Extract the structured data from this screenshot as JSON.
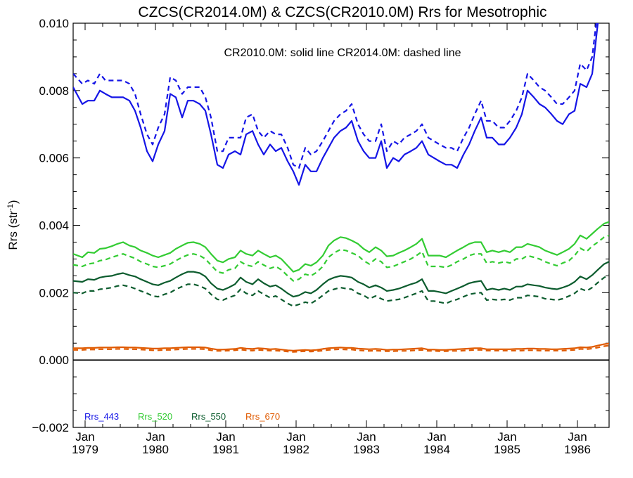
{
  "chart_data": {
    "type": "line",
    "title": "CZCS(CR2014.0M) & CZCS(CR2010.0M)  Rrs for Mesotrophic",
    "annotation": "CR2010.0M: solid line   CR2014.0M: dashed line",
    "ylabel": "Rrs (str",
    "ylabel_sup": "-1",
    "ylabel_close": ")",
    "xlim": [
      1978.83,
      1986.45
    ],
    "ylim": [
      -0.002,
      0.01
    ],
    "grid": false,
    "yticks": [
      {
        "v": -0.002,
        "label": "−0.002"
      },
      {
        "v": 0.0,
        "label": "0.000"
      },
      {
        "v": 0.002,
        "label": "0.002"
      },
      {
        "v": 0.004,
        "label": "0.004"
      },
      {
        "v": 0.006,
        "label": "0.006"
      },
      {
        "v": 0.008,
        "label": "0.008"
      },
      {
        "v": 0.01,
        "label": "0.010"
      }
    ],
    "xticks": [
      {
        "v": 1979.0,
        "month": "Jan",
        "year": "1979"
      },
      {
        "v": 1980.0,
        "month": "Jan",
        "year": "1980"
      },
      {
        "v": 1981.0,
        "month": "Jan",
        "year": "1981"
      },
      {
        "v": 1982.0,
        "month": "Jan",
        "year": "1982"
      },
      {
        "v": 1983.0,
        "month": "Jan",
        "year": "1983"
      },
      {
        "v": 1984.0,
        "month": "Jan",
        "year": "1984"
      },
      {
        "v": 1985.0,
        "month": "Jan",
        "year": "1985"
      },
      {
        "v": 1986.0,
        "month": "Jan",
        "year": "1986"
      }
    ],
    "legend_placement": "bottom-left",
    "x": [
      1978.83,
      1978.96,
      1979.04,
      1979.13,
      1979.21,
      1979.29,
      1979.38,
      1979.46,
      1979.54,
      1979.63,
      1979.71,
      1979.79,
      1979.88,
      1979.96,
      1980.04,
      1980.13,
      1980.21,
      1980.29,
      1980.38,
      1980.46,
      1980.54,
      1980.63,
      1980.71,
      1980.79,
      1980.88,
      1980.96,
      1981.04,
      1981.13,
      1981.21,
      1981.29,
      1981.38,
      1981.46,
      1981.54,
      1981.63,
      1981.71,
      1981.79,
      1981.88,
      1981.96,
      1982.04,
      1982.13,
      1982.21,
      1982.29,
      1982.38,
      1982.46,
      1982.54,
      1982.63,
      1982.71,
      1982.79,
      1982.88,
      1982.96,
      1983.04,
      1983.13,
      1983.21,
      1983.29,
      1983.38,
      1983.46,
      1983.54,
      1983.63,
      1983.71,
      1983.79,
      1983.88,
      1983.96,
      1984.04,
      1984.13,
      1984.21,
      1984.29,
      1984.38,
      1984.46,
      1984.54,
      1984.63,
      1984.71,
      1984.79,
      1984.88,
      1984.96,
      1985.04,
      1985.13,
      1985.21,
      1985.29,
      1985.38,
      1985.46,
      1985.54,
      1985.63,
      1985.71,
      1985.79,
      1985.88,
      1985.96,
      1986.04,
      1986.13,
      1986.21,
      1986.29,
      1986.38,
      1986.45
    ],
    "series": [
      {
        "name": "Rrs_443",
        "color": "#1515e6",
        "style": "solid",
        "values": [
          0.0081,
          0.0076,
          0.0077,
          0.0077,
          0.008,
          0.0079,
          0.0078,
          0.0078,
          0.0078,
          0.0077,
          0.0074,
          0.0069,
          0.0062,
          0.0059,
          0.0064,
          0.0068,
          0.0079,
          0.0078,
          0.0072,
          0.0077,
          0.0077,
          0.0076,
          0.0074,
          0.0067,
          0.0058,
          0.0057,
          0.0061,
          0.0062,
          0.0061,
          0.0067,
          0.0068,
          0.0064,
          0.0061,
          0.0064,
          0.0062,
          0.0063,
          0.0059,
          0.0056,
          0.0052,
          0.0058,
          0.0056,
          0.0056,
          0.006,
          0.0063,
          0.0066,
          0.0068,
          0.0069,
          0.0071,
          0.0065,
          0.0062,
          0.006,
          0.006,
          0.0065,
          0.0057,
          0.006,
          0.0059,
          0.0061,
          0.0062,
          0.0063,
          0.0065,
          0.0061,
          0.006,
          0.0059,
          0.0058,
          0.0058,
          0.0057,
          0.0061,
          0.0064,
          0.0068,
          0.0072,
          0.0066,
          0.0066,
          0.0064,
          0.0064,
          0.0066,
          0.0069,
          0.0073,
          0.008,
          0.0078,
          0.0076,
          0.0075,
          0.0073,
          0.0071,
          0.007,
          0.0073,
          0.0074,
          0.0082,
          0.0081,
          0.0085,
          0.01,
          0.0108,
          0.0112
        ]
      },
      {
        "name": "Rrs_443",
        "color": "#1515e6",
        "style": "dashed",
        "values": [
          0.0085,
          0.0082,
          0.0083,
          0.0082,
          0.0085,
          0.0083,
          0.0083,
          0.0083,
          0.0083,
          0.0082,
          0.0079,
          0.0073,
          0.0067,
          0.0064,
          0.0069,
          0.0073,
          0.0084,
          0.0083,
          0.0079,
          0.0081,
          0.0081,
          0.0081,
          0.0078,
          0.0072,
          0.0062,
          0.0062,
          0.0066,
          0.0066,
          0.0066,
          0.0072,
          0.0073,
          0.0068,
          0.0066,
          0.0068,
          0.0067,
          0.0067,
          0.0063,
          0.0058,
          0.0057,
          0.0063,
          0.0061,
          0.0062,
          0.0065,
          0.0068,
          0.0071,
          0.0073,
          0.0074,
          0.0076,
          0.007,
          0.0067,
          0.0065,
          0.0065,
          0.007,
          0.0062,
          0.0065,
          0.0064,
          0.0066,
          0.0067,
          0.0068,
          0.007,
          0.0066,
          0.0065,
          0.0064,
          0.0063,
          0.0063,
          0.0062,
          0.0066,
          0.0069,
          0.0073,
          0.0077,
          0.0071,
          0.0071,
          0.0069,
          0.0069,
          0.0071,
          0.0074,
          0.0078,
          0.0085,
          0.0083,
          0.0081,
          0.008,
          0.0078,
          0.0076,
          0.0076,
          0.0078,
          0.008,
          0.0088,
          0.0086,
          0.009,
          0.0104,
          0.011,
          0.0112
        ]
      },
      {
        "name": "Rrs_520",
        "color": "#33cc33",
        "style": "solid",
        "values": [
          0.00315,
          0.00305,
          0.0032,
          0.00318,
          0.0033,
          0.00332,
          0.00338,
          0.00345,
          0.0035,
          0.0034,
          0.00335,
          0.00325,
          0.00318,
          0.0031,
          0.00305,
          0.00312,
          0.00318,
          0.0033,
          0.0034,
          0.00348,
          0.0035,
          0.00345,
          0.00335,
          0.00315,
          0.00295,
          0.0029,
          0.003,
          0.00305,
          0.00325,
          0.00315,
          0.0031,
          0.00325,
          0.00315,
          0.00305,
          0.0031,
          0.003,
          0.0028,
          0.00262,
          0.00268,
          0.00285,
          0.0028,
          0.0029,
          0.0031,
          0.0034,
          0.00355,
          0.00365,
          0.00362,
          0.00355,
          0.00345,
          0.0033,
          0.0032,
          0.00335,
          0.00325,
          0.00308,
          0.0031,
          0.00318,
          0.00325,
          0.00335,
          0.00345,
          0.0036,
          0.0031,
          0.0031,
          0.0031,
          0.00305,
          0.00315,
          0.00325,
          0.00335,
          0.00345,
          0.0035,
          0.0035,
          0.0032,
          0.00325,
          0.0032,
          0.00325,
          0.0032,
          0.00335,
          0.00335,
          0.00345,
          0.0034,
          0.00335,
          0.00325,
          0.00318,
          0.00312,
          0.0032,
          0.0033,
          0.00345,
          0.0037,
          0.0036,
          0.00375,
          0.0039,
          0.00405,
          0.0041
        ]
      },
      {
        "name": "Rrs_520",
        "color": "#33cc33",
        "style": "dashed",
        "values": [
          0.00283,
          0.00278,
          0.00285,
          0.00288,
          0.00295,
          0.00298,
          0.00305,
          0.0031,
          0.00315,
          0.00308,
          0.00302,
          0.00292,
          0.00285,
          0.00278,
          0.00275,
          0.0028,
          0.00285,
          0.00295,
          0.00305,
          0.00312,
          0.00315,
          0.0031,
          0.003,
          0.00282,
          0.00262,
          0.00258,
          0.00268,
          0.00272,
          0.00292,
          0.00282,
          0.00278,
          0.00292,
          0.00282,
          0.00272,
          0.00278,
          0.00268,
          0.0025,
          0.00235,
          0.0024,
          0.00255,
          0.0025,
          0.0026,
          0.00278,
          0.00305,
          0.00318,
          0.00328,
          0.00325,
          0.00318,
          0.0031,
          0.00295,
          0.00285,
          0.003,
          0.00292,
          0.00275,
          0.00278,
          0.00285,
          0.00292,
          0.003,
          0.0031,
          0.00322,
          0.00278,
          0.00278,
          0.00278,
          0.00275,
          0.00282,
          0.00292,
          0.003,
          0.0031,
          0.00315,
          0.00315,
          0.00288,
          0.00292,
          0.00288,
          0.00292,
          0.00288,
          0.003,
          0.003,
          0.0031,
          0.00305,
          0.003,
          0.00292,
          0.00285,
          0.0028,
          0.00288,
          0.00295,
          0.0031,
          0.00332,
          0.00322,
          0.00338,
          0.0035,
          0.00365,
          0.0037
        ]
      },
      {
        "name": "Rrs_550",
        "color": "#0c5c2e",
        "style": "solid",
        "values": [
          0.00235,
          0.00232,
          0.0024,
          0.00238,
          0.00245,
          0.00248,
          0.0025,
          0.00255,
          0.00258,
          0.00252,
          0.00248,
          0.0024,
          0.00232,
          0.00225,
          0.00222,
          0.0023,
          0.00235,
          0.00245,
          0.00255,
          0.00262,
          0.00262,
          0.00258,
          0.00248,
          0.00228,
          0.00212,
          0.00208,
          0.00215,
          0.00225,
          0.00245,
          0.00232,
          0.00225,
          0.0024,
          0.00228,
          0.00218,
          0.00222,
          0.00212,
          0.00198,
          0.00188,
          0.00192,
          0.00202,
          0.00198,
          0.00208,
          0.00225,
          0.00238,
          0.00245,
          0.0025,
          0.00248,
          0.00245,
          0.00232,
          0.00225,
          0.00215,
          0.00222,
          0.00215,
          0.00205,
          0.00208,
          0.00212,
          0.00218,
          0.00225,
          0.0023,
          0.0024,
          0.00205,
          0.00205,
          0.00202,
          0.00198,
          0.00205,
          0.00212,
          0.0022,
          0.00228,
          0.00232,
          0.00235,
          0.00208,
          0.00212,
          0.00208,
          0.00212,
          0.00208,
          0.00218,
          0.00218,
          0.00225,
          0.00222,
          0.0022,
          0.00215,
          0.00212,
          0.0021,
          0.00215,
          0.00222,
          0.00232,
          0.00248,
          0.0024,
          0.00252,
          0.00268,
          0.00285,
          0.00292
        ]
      },
      {
        "name": "Rrs_550",
        "color": "#0c5c2e",
        "style": "dashed",
        "values": [
          0.002,
          0.00198,
          0.00205,
          0.00205,
          0.0021,
          0.00212,
          0.00215,
          0.0022,
          0.00222,
          0.00218,
          0.00212,
          0.00205,
          0.00198,
          0.0019,
          0.00188,
          0.00195,
          0.002,
          0.0021,
          0.00218,
          0.00225,
          0.00225,
          0.0022,
          0.00212,
          0.00195,
          0.0018,
          0.00178,
          0.00185,
          0.00192,
          0.0021,
          0.00198,
          0.00192,
          0.00205,
          0.00195,
          0.00185,
          0.0019,
          0.0018,
          0.00168,
          0.0016,
          0.00165,
          0.00172,
          0.00168,
          0.00178,
          0.00192,
          0.00205,
          0.0021,
          0.00215,
          0.00212,
          0.0021,
          0.00198,
          0.00192,
          0.00182,
          0.0019,
          0.00182,
          0.00175,
          0.00178,
          0.0018,
          0.00185,
          0.00192,
          0.00198,
          0.00205,
          0.00175,
          0.00175,
          0.00172,
          0.00168,
          0.00175,
          0.0018,
          0.00188,
          0.00195,
          0.00198,
          0.002,
          0.00178,
          0.0018,
          0.00178,
          0.0018,
          0.00178,
          0.00185,
          0.00185,
          0.00192,
          0.0019,
          0.00188,
          0.00182,
          0.0018,
          0.00178,
          0.00182,
          0.0019,
          0.00198,
          0.00212,
          0.00205,
          0.00215,
          0.0023,
          0.00245,
          0.00252
        ]
      },
      {
        "name": "Rrs_670",
        "color": "#e05a00",
        "style": "solid",
        "values": [
          0.00035,
          0.00035,
          0.00036,
          0.00036,
          0.00037,
          0.00037,
          0.00037,
          0.00038,
          0.00038,
          0.00037,
          0.00037,
          0.00036,
          0.00035,
          0.00034,
          0.00034,
          0.00035,
          0.00035,
          0.00036,
          0.00037,
          0.00038,
          0.00038,
          0.00038,
          0.00037,
          0.00034,
          0.00031,
          0.00031,
          0.00032,
          0.00033,
          0.00036,
          0.00034,
          0.00033,
          0.00035,
          0.00034,
          0.00032,
          0.00033,
          0.00031,
          0.00029,
          0.00028,
          0.00029,
          0.0003,
          0.00029,
          0.0003,
          0.00033,
          0.00035,
          0.00036,
          0.00037,
          0.00036,
          0.00036,
          0.00034,
          0.00033,
          0.00032,
          0.00033,
          0.00032,
          0.0003,
          0.00031,
          0.00031,
          0.00032,
          0.00033,
          0.00034,
          0.00035,
          0.00031,
          0.00031,
          0.0003,
          0.0003,
          0.00031,
          0.00032,
          0.00033,
          0.00034,
          0.00035,
          0.00035,
          0.00032,
          0.00032,
          0.00032,
          0.00032,
          0.00032,
          0.00033,
          0.00033,
          0.00034,
          0.00034,
          0.00033,
          0.00033,
          0.00032,
          0.00032,
          0.00033,
          0.00034,
          0.00035,
          0.00038,
          0.00037,
          0.00039,
          0.00043,
          0.00047,
          0.00049
        ]
      },
      {
        "name": "Rrs_670",
        "color": "#e05a00",
        "style": "dashed",
        "values": [
          0.0003,
          0.0003,
          0.00031,
          0.00031,
          0.00032,
          0.00032,
          0.00032,
          0.00033,
          0.00033,
          0.00032,
          0.00032,
          0.00031,
          0.0003,
          0.00029,
          0.00029,
          0.0003,
          0.0003,
          0.00031,
          0.00032,
          0.00033,
          0.00033,
          0.00033,
          0.00032,
          0.00029,
          0.00027,
          0.00027,
          0.00028,
          0.00029,
          0.00031,
          0.00029,
          0.00028,
          0.0003,
          0.00029,
          0.00028,
          0.00028,
          0.00027,
          0.00025,
          0.00024,
          0.00025,
          0.00026,
          0.00025,
          0.00026,
          0.00028,
          0.0003,
          0.00031,
          0.00032,
          0.00031,
          0.00031,
          0.00029,
          0.00028,
          0.00027,
          0.00028,
          0.00027,
          0.00026,
          0.00026,
          0.00027,
          0.00027,
          0.00028,
          0.00029,
          0.0003,
          0.00027,
          0.00027,
          0.00026,
          0.00026,
          0.00027,
          0.00027,
          0.00028,
          0.00029,
          0.0003,
          0.0003,
          0.00028,
          0.00028,
          0.00028,
          0.00028,
          0.00028,
          0.00028,
          0.00028,
          0.00029,
          0.00029,
          0.00028,
          0.00028,
          0.00028,
          0.00028,
          0.00028,
          0.00029,
          0.0003,
          0.00033,
          0.00032,
          0.00034,
          0.00037,
          0.00041,
          0.00043
        ]
      }
    ],
    "legend": [
      {
        "label": "Rrs_443",
        "color": "#1515e6"
      },
      {
        "label": "Rrs_520",
        "color": "#33cc33"
      },
      {
        "label": "Rrs_550",
        "color": "#0c5c2e"
      },
      {
        "label": "Rrs_670",
        "color": "#e05a00"
      }
    ]
  }
}
